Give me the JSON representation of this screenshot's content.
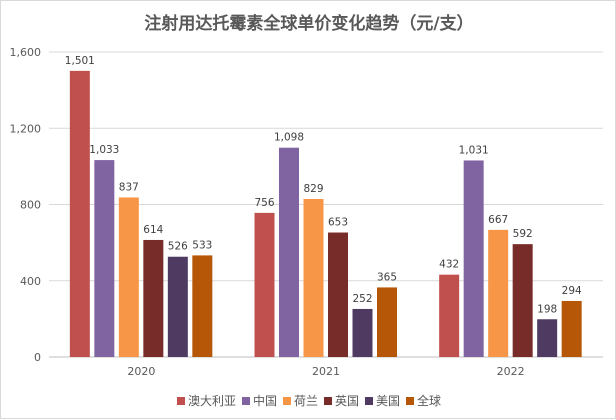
{
  "chart_data": {
    "type": "bar",
    "title": "注射用达托霉素全球单价变化趋势（元/支）",
    "categories": [
      "2020",
      "2021",
      "2022"
    ],
    "ylim": [
      0,
      1600
    ],
    "yticks": [
      "0",
      "400",
      "800",
      "1,200",
      "1,600"
    ],
    "grid": true,
    "legend_position": "bottom",
    "series": [
      {
        "name": "澳大利亚",
        "color": "#C0504D",
        "values": [
          1501,
          756,
          432
        ],
        "labels": [
          "1,501",
          "756",
          "432"
        ]
      },
      {
        "name": "中国",
        "color": "#8064A2",
        "values": [
          1033,
          1098,
          1031
        ],
        "labels": [
          "1,033",
          "1,098",
          "1,031"
        ]
      },
      {
        "name": "荷兰",
        "color": "#F79646",
        "values": [
          837,
          829,
          667
        ],
        "labels": [
          "837",
          "829",
          "667"
        ]
      },
      {
        "name": "英国",
        "color": "#772C2A",
        "values": [
          614,
          653,
          592
        ],
        "labels": [
          "614",
          "653",
          "592"
        ]
      },
      {
        "name": "美国",
        "color": "#4F3B62",
        "values": [
          526,
          252,
          198
        ],
        "labels": [
          "526",
          "252",
          "198"
        ]
      },
      {
        "name": "全球",
        "color": "#B65708",
        "values": [
          533,
          365,
          294
        ],
        "labels": [
          "533",
          "365",
          "294"
        ]
      }
    ]
  }
}
